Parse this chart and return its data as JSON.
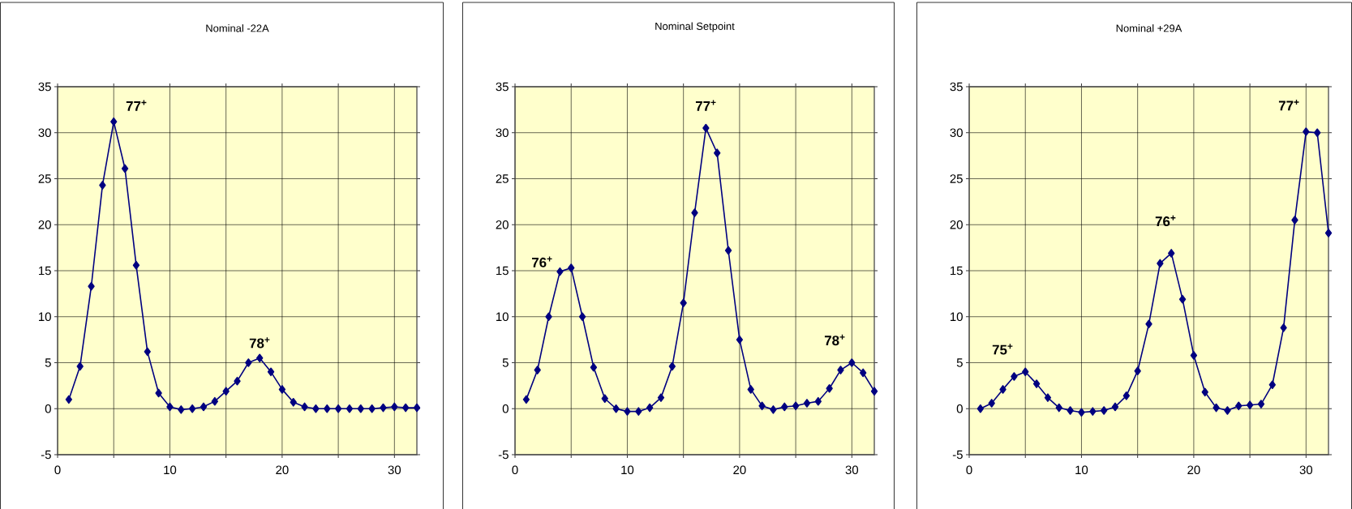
{
  "chart_data": [
    {
      "type": "line",
      "title": "Nominal -22A",
      "color": "#000080",
      "marker": "diamond",
      "line_style": "solid",
      "grid": true,
      "x": [
        1,
        2,
        3,
        4,
        5,
        6,
        7,
        8,
        9,
        10,
        11,
        12,
        13,
        14,
        15,
        16,
        17,
        18,
        19,
        20,
        21,
        22,
        23,
        24,
        25,
        26,
        27,
        28,
        29,
        30,
        31,
        32
      ],
      "values": [
        1.0,
        4.6,
        13.3,
        24.3,
        31.2,
        26.1,
        15.6,
        6.2,
        1.7,
        0.2,
        -0.1,
        0,
        0.2,
        0.8,
        1.9,
        3.0,
        5.0,
        5.5,
        4.0,
        2.1,
        0.7,
        0.2,
        0,
        0,
        0,
        0,
        0,
        0,
        0.1,
        0.2,
        0.1,
        0.1
      ],
      "xlim": [
        0,
        32
      ],
      "ylim": [
        -5,
        35
      ],
      "xticks": [
        0,
        {
          "value": 5,
          "label": null
        },
        10,
        {
          "value": 15,
          "label": null
        },
        20,
        {
          "value": 25,
          "label": null
        },
        30
      ],
      "yticks": [
        -5,
        0,
        5,
        10,
        15,
        20,
        25,
        30,
        35
      ],
      "annotations": [
        {
          "text": "77$^{+}$",
          "x": 5,
          "y": 31.2
        },
        {
          "text": "78$^{+}$",
          "x": 18,
          "y": 5.5
        }
      ]
    },
    {
      "type": "line",
      "title": "Nominal Setpoint",
      "color": "#000080",
      "marker": "diamond",
      "line_style": "solid",
      "grid": true,
      "x": [
        1,
        2,
        3,
        4,
        5,
        6,
        7,
        8,
        9,
        10,
        11,
        12,
        13,
        14,
        15,
        16,
        17,
        18,
        19,
        20,
        21,
        22,
        23,
        24,
        25,
        26,
        27,
        28,
        29,
        30,
        31,
        32
      ],
      "values": [
        1.0,
        4.2,
        10.0,
        14.9,
        15.3,
        10.0,
        4.5,
        1.1,
        0,
        -0.3,
        -0.3,
        0.1,
        1.2,
        4.6,
        11.5,
        21.3,
        30.5,
        27.8,
        17.2,
        7.5,
        2.1,
        0.3,
        -0.1,
        0.2,
        0.3,
        0.6,
        0.8,
        2.2,
        4.2,
        5.0,
        3.9,
        1.9
      ],
      "xlim": [
        0,
        32
      ],
      "ylim": [
        -5,
        35
      ],
      "xticks": [
        0,
        {
          "value": 5,
          "label": null
        },
        10,
        {
          "value": 15,
          "label": null
        },
        20,
        {
          "value": 25,
          "label": null
        },
        30
      ],
      "yticks": [
        -5,
        0,
        5,
        10,
        15,
        20,
        25,
        30,
        35
      ],
      "annotations": [
        {
          "text": "76$^{+}$",
          "x": 4,
          "y": 14.9
        },
        {
          "text": "77$^{+}$",
          "x": 17,
          "y": 30.5
        },
        {
          "text": "78$^{+}$",
          "x": 30,
          "y": 5.0
        }
      ]
    },
    {
      "type": "line",
      "title": "Nominal +29A",
      "color": "#000080",
      "marker": "diamond",
      "line_style": "solid",
      "grid": true,
      "x": [
        1,
        2,
        3,
        4,
        5,
        6,
        7,
        8,
        9,
        10,
        11,
        12,
        13,
        14,
        15,
        16,
        17,
        18,
        19,
        20,
        21,
        22,
        23,
        24,
        25,
        26,
        27,
        28,
        29,
        30,
        31,
        32
      ],
      "values": [
        0,
        0.6,
        2.1,
        3.5,
        4.0,
        2.7,
        1.2,
        0.1,
        -0.2,
        -0.4,
        -0.3,
        -0.2,
        0.2,
        1.4,
        4.1,
        9.2,
        15.8,
        16.9,
        11.9,
        5.8,
        1.8,
        0.1,
        -0.2,
        0.3,
        0.4,
        0.5,
        2.6,
        8.8,
        20.5,
        30.1,
        30.0,
        19.1
      ],
      "xlim": [
        0,
        32
      ],
      "ylim": [
        -5,
        35
      ],
      "xticks": [
        0,
        {
          "value": 5,
          "label": null
        },
        10,
        {
          "value": 15,
          "label": null
        },
        20,
        {
          "value": 25,
          "label": null
        },
        30
      ],
      "yticks": [
        -5,
        0,
        5,
        10,
        15,
        20,
        25,
        30,
        35
      ],
      "annotations": [
        {
          "text": "75$^{+}$",
          "x": 5,
          "y": 4.0
        },
        {
          "text": "76$^{+}$",
          "x": 18,
          "y": 16.9
        },
        {
          "text": "77$^{+}$",
          "x": 30,
          "y": 30.1
        }
      ]
    }
  ]
}
